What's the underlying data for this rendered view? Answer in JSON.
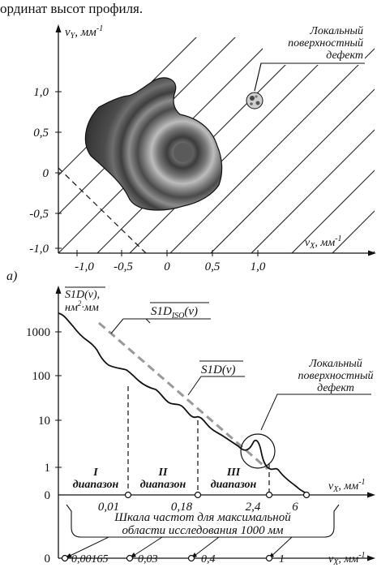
{
  "header_text": "ординат высот профиля.",
  "top": {
    "y_axis_label_main": "ν",
    "y_axis_label_sub": "Y",
    "y_axis_label_unit": ", мм",
    "y_axis_label_exp": "-1",
    "x_axis_label_main": "ν",
    "x_axis_label_sub": "X",
    "x_axis_label_unit": ", мм",
    "x_axis_label_exp": "-1",
    "y_ticks": [
      "1,0",
      "0,5",
      "0",
      "-0,5",
      "-1,0"
    ],
    "x_ticks": [
      "-1,0",
      "-0,5",
      "0",
      "0,5",
      "1,0"
    ],
    "defect_label": [
      "Локальный",
      "поверхностный",
      "дефект"
    ],
    "panel_label": "а)"
  },
  "bottom": {
    "y_label_line1": "S1D(ν),",
    "y_label_line2_a": "нм",
    "y_label_line2_exp": "2",
    "y_label_line2_b": "·мм",
    "y_ticks": [
      "1000",
      "100",
      "10",
      "1",
      "0"
    ],
    "iso_label_main": "S1D",
    "iso_label_sub": "ISO",
    "iso_label_rest": "(ν)",
    "curve_label": "S1D(ν)",
    "defect_label": [
      "Локальный",
      "поверхностный",
      "дефект"
    ],
    "ranges": [
      {
        "roman": "I",
        "word": "диапазон"
      },
      {
        "roman": "II",
        "word": "диапазон"
      },
      {
        "roman": "III",
        "word": "диапазон"
      }
    ],
    "x_ticks": [
      "0,01",
      "0,18",
      "2,4",
      "6"
    ],
    "x_axis_label_main": "ν",
    "x_axis_label_sub": "X",
    "x_axis_label_unit": ", мм",
    "x_axis_label_exp": "-1",
    "scale_caption": [
      "Шкала частот для максимальной",
      "области исследования 1000 мм"
    ],
    "scale2_zero": "0",
    "scale2_ticks": [
      "0,00165",
      "0,03",
      "0,4",
      "1"
    ],
    "scale2_x_label_main": "ν",
    "scale2_x_label_sub": "X",
    "scale2_x_label_unit": ", мм",
    "scale2_x_label_exp": "-1"
  }
}
